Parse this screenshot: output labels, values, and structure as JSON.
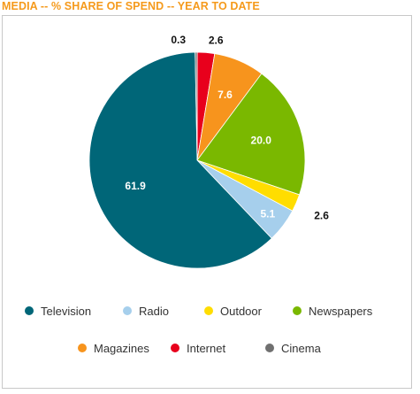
{
  "chart_data": {
    "type": "pie",
    "title": "MEDIA -- % SHARE OF SPEND --  YEAR TO DATE",
    "slices": [
      {
        "name": "Internet",
        "value": 2.6,
        "label": "2.6",
        "color": "#e8001c"
      },
      {
        "name": "Magazines",
        "value": 7.6,
        "label": "7.6",
        "color": "#f7941d"
      },
      {
        "name": "Newspapers",
        "value": 20.0,
        "label": "20.0",
        "color": "#7ab800"
      },
      {
        "name": "Outdoor",
        "value": 2.6,
        "label": "2.6",
        "color": "#ffdd00"
      },
      {
        "name": "Radio",
        "value": 5.1,
        "label": "5.1",
        "color": "#a6cfec"
      },
      {
        "name": "Television",
        "value": 61.9,
        "label": "61.9",
        "color": "#006678"
      },
      {
        "name": "Cinema",
        "value": 0.3,
        "label": "0.3",
        "color": "#707070"
      }
    ],
    "legend": [
      {
        "name": "Television",
        "color": "#006678"
      },
      {
        "name": "Radio",
        "color": "#a6cfec"
      },
      {
        "name": "Outdoor",
        "color": "#ffdd00"
      },
      {
        "name": "Newspapers",
        "color": "#7ab800"
      },
      {
        "name": "Magazines",
        "color": "#f7941d"
      },
      {
        "name": "Internet",
        "color": "#e8001c"
      },
      {
        "name": "Cinema",
        "color": "#707070"
      }
    ],
    "legend_position": "bottom"
  }
}
